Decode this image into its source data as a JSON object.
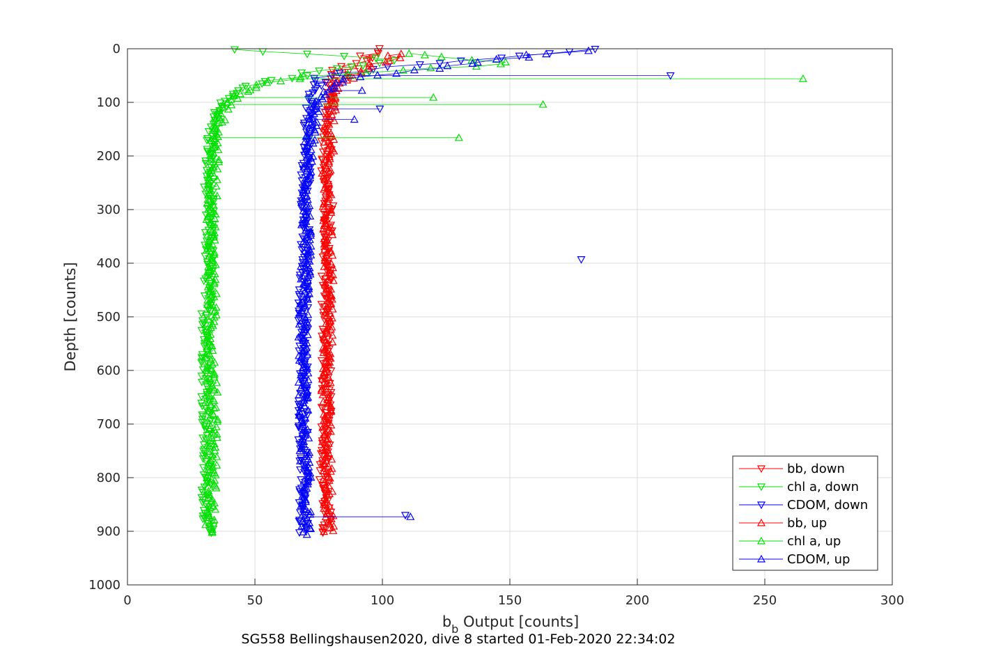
{
  "chart_data": {
    "type": "scatter",
    "title": "SG558 Bellingshausen2020, dive 8 started 01-Feb-2020 22:34:02",
    "xlabel": {
      "main": "b",
      "subscript": "b",
      "rest": " Output [counts]"
    },
    "ylabel": "Depth [counts]",
    "xlim": [
      0,
      300
    ],
    "ylim": [
      0,
      1000
    ],
    "y_reversed": true,
    "grid": true,
    "legend_position": "bottom-right",
    "x_ticks": [
      "0",
      "50",
      "100",
      "150",
      "200",
      "250",
      "300"
    ],
    "y_ticks": [
      "0",
      "100",
      "200",
      "300",
      "400",
      "500",
      "600",
      "700",
      "800",
      "900",
      "1000"
    ],
    "series": [
      {
        "name": "bb, down",
        "color": "#ff0000",
        "marker": "triangle-down",
        "x": [
          97,
          96,
          92,
          88,
          85,
          82,
          80,
          79,
          79,
          78,
          78,
          78,
          79,
          78,
          78,
          78,
          78,
          78,
          77,
          78,
          78
        ],
        "y": [
          0,
          10,
          20,
          30,
          40,
          50,
          60,
          80,
          100,
          150,
          200,
          250,
          300,
          400,
          500,
          600,
          700,
          750,
          800,
          850,
          905
        ]
      },
      {
        "name": "chl a, down",
        "color": "#00e000",
        "marker": "triangle-down",
        "x": [
          39,
          45,
          55,
          75,
          95,
          105,
          90,
          70,
          55,
          45,
          40,
          37,
          34,
          33,
          32,
          32,
          32,
          31,
          31,
          31,
          31,
          31,
          32
        ],
        "y": [
          2,
          5,
          8,
          12,
          15,
          20,
          30,
          45,
          60,
          75,
          90,
          110,
          130,
          160,
          200,
          300,
          400,
          500,
          600,
          700,
          800,
          850,
          905
        ]
      },
      {
        "name": "CDOM, down",
        "color": "#0000ff",
        "marker": "triangle-down",
        "x": [
          180,
          170,
          150,
          130,
          110,
          95,
          85,
          78,
          75,
          73,
          72,
          71,
          70,
          70,
          69,
          69,
          69,
          69,
          69,
          69,
          69
        ],
        "y": [
          2,
          8,
          15,
          22,
          30,
          38,
          45,
          55,
          65,
          80,
          100,
          150,
          200,
          300,
          400,
          500,
          600,
          700,
          800,
          850,
          905
        ]
      },
      {
        "name": "bb, up",
        "color": "#ff0000",
        "marker": "triangle-up",
        "x": [
          79,
          79,
          79,
          78,
          78,
          78,
          79,
          79,
          78,
          78,
          79,
          79,
          80,
          81,
          83,
          86,
          90,
          95,
          100,
          105
        ],
        "y": [
          905,
          850,
          800,
          750,
          700,
          600,
          500,
          400,
          300,
          250,
          200,
          150,
          100,
          80,
          60,
          50,
          40,
          30,
          20,
          10
        ]
      },
      {
        "name": "chl a, up",
        "color": "#00e000",
        "marker": "triangle-up",
        "x": [
          32,
          33,
          33,
          34,
          33,
          33,
          33,
          33,
          34,
          35,
          38,
          42,
          50,
          65,
          90,
          115,
          135,
          150,
          140,
          120,
          110
        ],
        "y": [
          905,
          850,
          800,
          700,
          600,
          500,
          400,
          300,
          200,
          150,
          110,
          90,
          70,
          55,
          45,
          38,
          32,
          28,
          22,
          15,
          8
        ],
        "outliers": [
          [
            265,
            56
          ],
          [
            163,
            104
          ],
          [
            120,
            91
          ],
          [
            130,
            166
          ]
        ]
      },
      {
        "name": "CDOM, up",
        "color": "#0000ff",
        "marker": "triangle-up",
        "x": [
          70,
          70,
          70,
          69,
          69,
          69,
          70,
          70,
          71,
          72,
          73,
          75,
          80,
          90,
          100,
          115,
          130,
          150,
          175
        ],
        "y": [
          905,
          850,
          800,
          700,
          600,
          500,
          400,
          300,
          200,
          150,
          120,
          90,
          70,
          55,
          45,
          38,
          30,
          20,
          5
        ],
        "outliers": [
          [
            89,
            132
          ],
          [
            92,
            78
          ],
          [
            111,
            873
          ]
        ]
      }
    ],
    "outliers_down": [
      {
        "series": "CDOM, down",
        "points": [
          [
            213,
            50
          ],
          [
            178,
            393
          ],
          [
            109,
            870
          ],
          [
            99,
            112
          ]
        ]
      }
    ]
  }
}
